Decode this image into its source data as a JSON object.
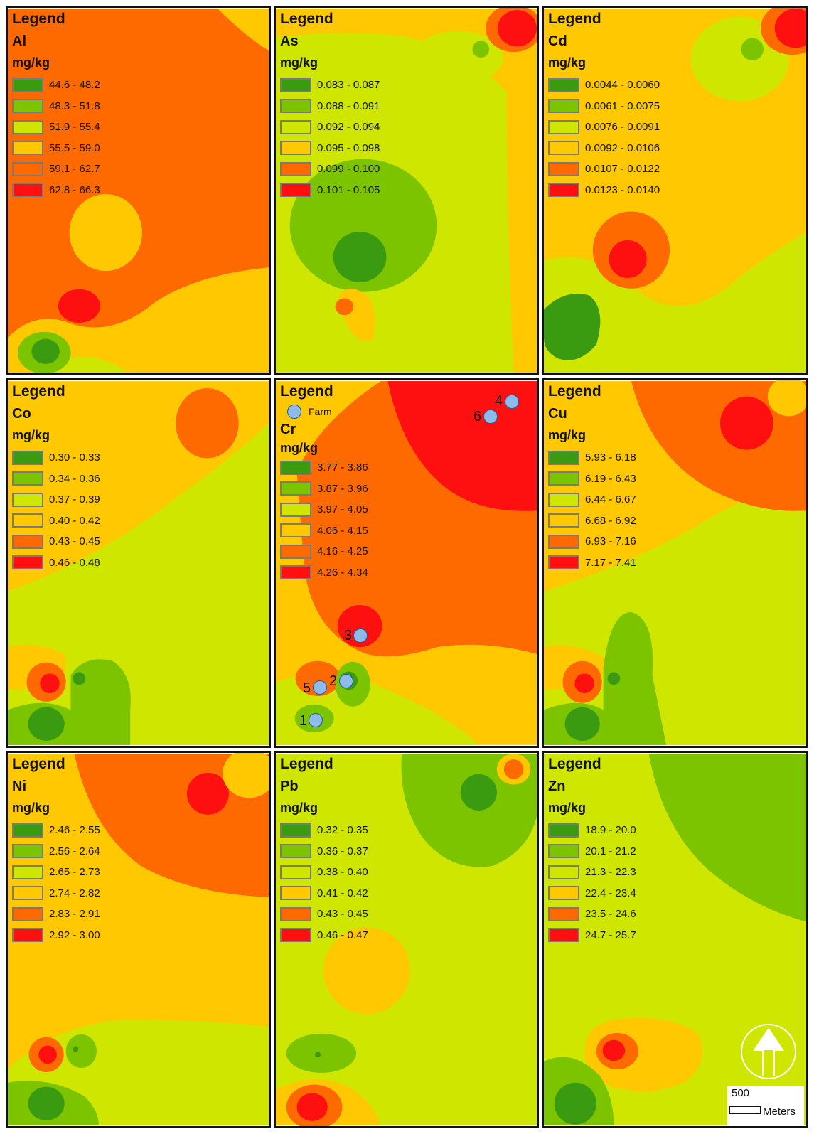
{
  "colors": {
    "class1": "#3a9a10",
    "class2": "#7cc400",
    "class3": "#cfe600",
    "class4": "#ffc800",
    "class5": "#ff6a00",
    "class6": "#ff1010",
    "farm": "#8fbbea"
  },
  "legend_title": "Legend",
  "unit": "mg/kg",
  "farm_label": "Farm",
  "panels": [
    {
      "element": "Al",
      "classes": [
        "44.6 - 48.2",
        "48.3 - 51.8",
        "51.9 - 55.4",
        "55.5 - 59.0",
        "59.1 - 62.7",
        "62.8 - 66.3"
      ]
    },
    {
      "element": "As",
      "classes": [
        "0.083 - 0.087",
        "0.088 - 0.091",
        "0.092 - 0.094",
        "0.095 - 0.098",
        "0.099 - 0.100",
        "0.101 - 0.105"
      ]
    },
    {
      "element": "Cd",
      "classes": [
        "0.0044 - 0.0060",
        "0.0061 - 0.0075",
        "0.0076 - 0.0091",
        "0.0092 - 0.0106",
        "0.0107 - 0.0122",
        "0.0123 - 0.0140"
      ]
    },
    {
      "element": "Co",
      "classes": [
        "0.30 - 0.33",
        "0.34 - 0.36",
        "0.37 - 0.39",
        "0.40 - 0.42",
        "0.43 - 0.45",
        "0.46 - 0.48"
      ]
    },
    {
      "element": "Cr",
      "classes": [
        "3.77 - 3.86",
        "3.87 - 3.96",
        "3.97 - 4.05",
        "4.06 - 4.15",
        "4.16 - 4.25",
        "4.26 - 4.34"
      ]
    },
    {
      "element": "Cu",
      "classes": [
        "5.93 - 6.18",
        "6.19 - 6.43",
        "6.44 - 6.67",
        "6.68 - 6.92",
        "6.93 - 7.16",
        "7.17 - 7.41"
      ]
    },
    {
      "element": "Ni",
      "classes": [
        "2.46 - 2.55",
        "2.56 - 2.64",
        "2.65 - 2.73",
        "2.74 - 2.82",
        "2.83 - 2.91",
        "2.92 - 3.00"
      ]
    },
    {
      "element": "Pb",
      "classes": [
        "0.32 - 0.35",
        "0.36 - 0.37",
        "0.38 - 0.40",
        "0.41 - 0.42",
        "0.43 - 0.45",
        "0.46 - 0.47"
      ]
    },
    {
      "element": "Zn",
      "classes": [
        "18.9 - 20.0",
        "20.1 - 21.2",
        "21.3 - 22.3",
        "22.4 - 23.4",
        "23.5 - 24.6",
        "24.7 - 25.7"
      ]
    }
  ],
  "farm_sites": [
    "1",
    "2",
    "3",
    "4",
    "5",
    "6"
  ],
  "scale": {
    "value": "500",
    "unit": "Meters"
  }
}
